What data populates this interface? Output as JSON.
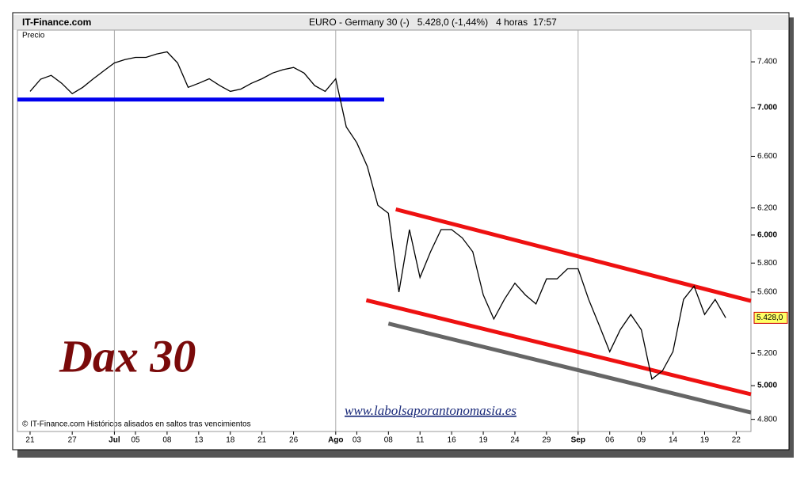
{
  "chart_data": {
    "type": "line",
    "source": "IT-Finance.com",
    "title": "EURO - Germany 30 (-)   5.428,0 (-1,44%)   4 horas  17:57",
    "y_label": "Precio",
    "annotation": "Dax 30",
    "website": "www.labolsaporantonomasia.es",
    "footnote": "© IT-Finance.com  Históricos alisados en saltos tras vencimientos",
    "log_scale": true,
    "xlim": [
      -1.2,
      68.4
    ],
    "ylim": [
      4730,
      7690
    ],
    "xticks": [
      {
        "value": 0,
        "label": "21"
      },
      {
        "value": 4,
        "label": "27"
      },
      {
        "value": 8,
        "label": "Jul"
      },
      {
        "value": 10,
        "label": "05"
      },
      {
        "value": 13,
        "label": "08"
      },
      {
        "value": 16,
        "label": "13"
      },
      {
        "value": 19,
        "label": "18"
      },
      {
        "value": 22,
        "label": "21"
      },
      {
        "value": 25,
        "label": "26"
      },
      {
        "value": 29,
        "label": "Ago"
      },
      {
        "value": 31,
        "label": "03"
      },
      {
        "value": 34,
        "label": "08"
      },
      {
        "value": 37,
        "label": "11"
      },
      {
        "value": 40,
        "label": "16"
      },
      {
        "value": 43,
        "label": "19"
      },
      {
        "value": 46,
        "label": "24"
      },
      {
        "value": 49,
        "label": "29"
      },
      {
        "value": 52,
        "label": "Sep"
      },
      {
        "value": 55,
        "label": "06"
      },
      {
        "value": 58,
        "label": "09"
      },
      {
        "value": 61,
        "label": "14"
      },
      {
        "value": 64,
        "label": "19"
      },
      {
        "value": 67,
        "label": "22"
      }
    ],
    "yticks": [
      {
        "value": 4800,
        "label": "4.800"
      },
      {
        "value": 5000,
        "label": "5.000"
      },
      {
        "value": 5200,
        "label": "5.200"
      },
      {
        "value": 5600,
        "label": "5.600"
      },
      {
        "value": 5800,
        "label": "5.800"
      },
      {
        "value": 6000,
        "label": "6.000"
      },
      {
        "value": 6200,
        "label": "6.200"
      },
      {
        "value": 6600,
        "label": "6.600"
      },
      {
        "value": 7000,
        "label": "7.000"
      },
      {
        "value": 7400,
        "label": "7.400"
      }
    ],
    "series": [
      {
        "color": "#000000",
        "x": [
          0,
          1,
          2,
          3,
          4,
          5,
          6,
          7,
          8,
          9,
          10,
          11,
          12,
          13,
          14,
          15,
          16,
          17,
          18,
          19,
          20,
          21,
          22,
          23,
          24,
          25,
          26,
          27,
          28,
          29,
          30,
          31,
          32,
          33,
          34,
          35,
          36,
          37,
          38,
          39,
          40,
          41,
          42,
          43,
          44,
          45,
          46,
          47,
          48,
          49,
          50,
          51,
          52,
          53,
          54,
          55,
          56,
          57,
          58,
          59,
          60,
          61,
          62,
          63,
          64,
          65,
          66
        ],
        "values": [
          7140,
          7246,
          7280,
          7210,
          7120,
          7175,
          7250,
          7320,
          7390,
          7420,
          7440,
          7440,
          7470,
          7490,
          7390,
          7175,
          7210,
          7250,
          7190,
          7140,
          7160,
          7210,
          7250,
          7300,
          7330,
          7350,
          7300,
          7190,
          7140,
          7250,
          6840,
          6710,
          6520,
          6220,
          6160,
          5600,
          6040,
          5700,
          5880,
          6040,
          6040,
          5980,
          5880,
          5580,
          5420,
          5550,
          5660,
          5580,
          5520,
          5690,
          5690,
          5760,
          5760,
          5550,
          5380,
          5210,
          5350,
          5450,
          5350,
          5040,
          5090,
          5210,
          5550,
          5640,
          5450,
          5550,
          5428
        ],
        "value_labels": [
          null,
          null,
          null,
          null,
          null,
          null,
          null,
          null,
          null,
          null,
          null,
          null,
          null,
          null,
          null,
          null,
          null,
          null,
          null,
          null,
          null,
          null,
          null,
          null,
          null,
          null,
          null,
          null,
          null,
          null,
          null,
          null,
          null,
          null,
          null,
          null,
          null,
          null,
          null,
          null,
          null,
          null,
          null,
          null,
          null,
          null,
          null,
          null,
          null,
          null,
          null,
          null,
          null,
          null,
          null,
          null,
          null,
          null,
          null,
          null,
          null,
          null,
          null,
          null,
          null,
          null,
          "5.428,0"
        ]
      }
    ],
    "trendlines": [
      {
        "color": "#0000ee",
        "x": [
          -1.2,
          33.6
        ],
        "values": [
          7070,
          7070
        ]
      },
      {
        "color": "#ee1111",
        "x": [
          34.7,
          68.4
        ],
        "values": [
          6190,
          5540
        ]
      },
      {
        "color": "#ee1111",
        "x": [
          31.9,
          68.4
        ],
        "values": [
          5545,
          4948
        ]
      },
      {
        "color": "#666666",
        "x": [
          34,
          68.4
        ],
        "values": [
          5390,
          4840
        ]
      }
    ]
  }
}
